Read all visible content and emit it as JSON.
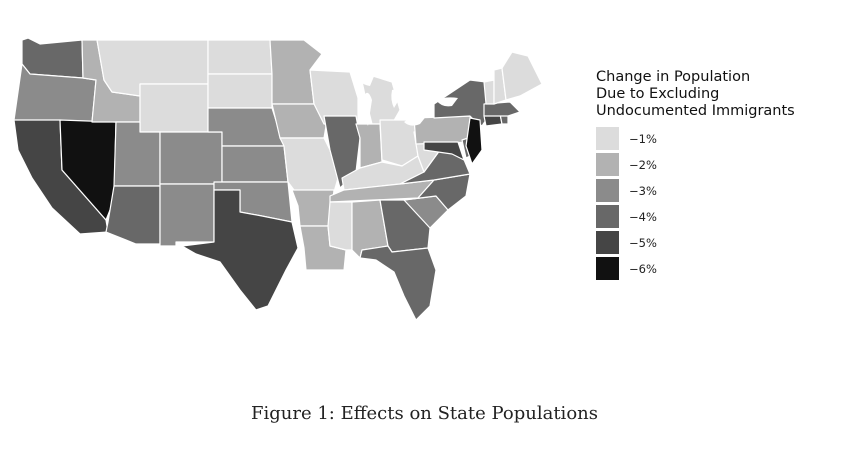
{
  "legend": {
    "title_lines": [
      "Change in Population",
      "Due to Excluding",
      "Undocumented Immigrants"
    ],
    "items": [
      {
        "label": "−1%",
        "color": "#dcdcdc"
      },
      {
        "label": "−2%",
        "color": "#b2b2b2"
      },
      {
        "label": "−3%",
        "color": "#8b8b8b"
      },
      {
        "label": "−4%",
        "color": "#686868"
      },
      {
        "label": "−5%",
        "color": "#454545"
      },
      {
        "label": "−6%",
        "color": "#111111"
      }
    ]
  },
  "caption": "Figure 1: Effects on State Populations",
  "states": [
    {
      "name": "Washington",
      "bin": 3
    },
    {
      "name": "Oregon",
      "bin": 2
    },
    {
      "name": "California",
      "bin": 4
    },
    {
      "name": "Nevada",
      "bin": 5
    },
    {
      "name": "Idaho",
      "bin": 1
    },
    {
      "name": "Montana",
      "bin": 0
    },
    {
      "name": "Wyoming",
      "bin": 0
    },
    {
      "name": "Utah",
      "bin": 2
    },
    {
      "name": "Arizona",
      "bin": 3
    },
    {
      "name": "Colorado",
      "bin": 2
    },
    {
      "name": "New Mexico",
      "bin": 2
    },
    {
      "name": "North Dakota",
      "bin": 0
    },
    {
      "name": "South Dakota",
      "bin": 0
    },
    {
      "name": "Nebraska",
      "bin": 2
    },
    {
      "name": "Kansas",
      "bin": 2
    },
    {
      "name": "Oklahoma",
      "bin": 2
    },
    {
      "name": "Texas",
      "bin": 4
    },
    {
      "name": "Minnesota",
      "bin": 1
    },
    {
      "name": "Iowa",
      "bin": 1
    },
    {
      "name": "Missouri",
      "bin": 0
    },
    {
      "name": "Arkansas",
      "bin": 1
    },
    {
      "name": "Louisiana",
      "bin": 1
    },
    {
      "name": "Wisconsin",
      "bin": 0
    },
    {
      "name": "Illinois",
      "bin": 3
    },
    {
      "name": "Michigan",
      "bin": 0
    },
    {
      "name": "Indiana",
      "bin": 1
    },
    {
      "name": "Ohio",
      "bin": 0
    },
    {
      "name": "Kentucky",
      "bin": 0
    },
    {
      "name": "Tennessee",
      "bin": 1
    },
    {
      "name": "Mississippi",
      "bin": 0
    },
    {
      "name": "Alabama",
      "bin": 1
    },
    {
      "name": "Georgia",
      "bin": 3
    },
    {
      "name": "Florida",
      "bin": 3
    },
    {
      "name": "South Carolina",
      "bin": 2
    },
    {
      "name": "North Carolina",
      "bin": 3
    },
    {
      "name": "Virginia",
      "bin": 3
    },
    {
      "name": "West Virginia",
      "bin": 0
    },
    {
      "name": "Pennsylvania",
      "bin": 1
    },
    {
      "name": "New York",
      "bin": 3
    },
    {
      "name": "Maryland",
      "bin": 4
    },
    {
      "name": "Delaware",
      "bin": 3
    },
    {
      "name": "New Jersey",
      "bin": 5
    },
    {
      "name": "Connecticut",
      "bin": 4
    },
    {
      "name": "Rhode Island",
      "bin": 3
    },
    {
      "name": "Massachusetts",
      "bin": 3
    },
    {
      "name": "Vermont",
      "bin": 0
    },
    {
      "name": "New Hampshire",
      "bin": 0
    },
    {
      "name": "Maine",
      "bin": 0
    }
  ]
}
